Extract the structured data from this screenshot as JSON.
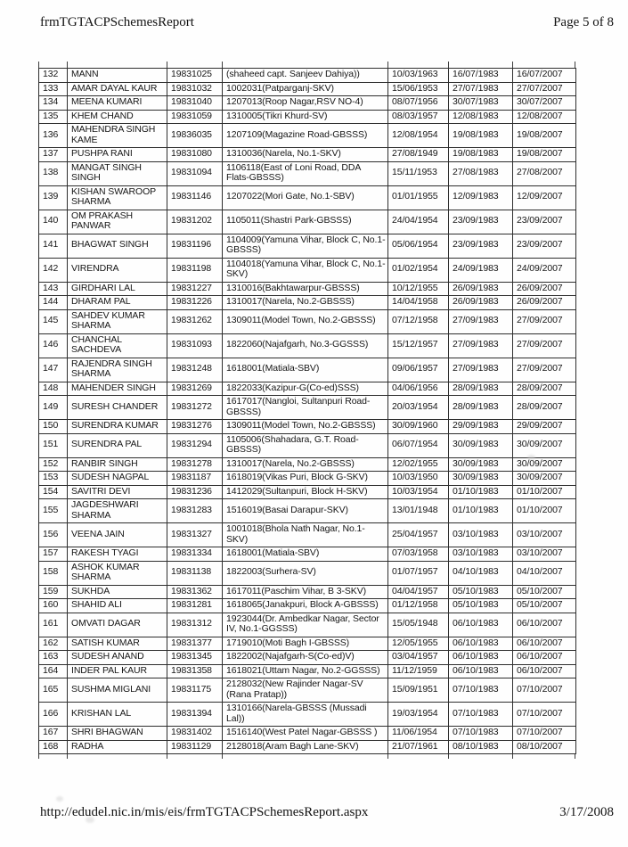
{
  "header": {
    "title": "frmTGTACPSchemesReport",
    "page_indicator": "Page 5 of 8"
  },
  "footer": {
    "url": "http://edudel.nic.in/mis/eis/frmTGTACPSchemesReport.aspx",
    "date": "3/17/2008"
  },
  "table": {
    "rows": [
      [
        "132",
        "MANN",
        "19831025",
        "(shaheed capt. Sanjeev Dahiya))",
        "10/03/1963",
        "16/07/1983",
        "16/07/2007"
      ],
      [
        "133",
        "AMAR DAYAL KAUR",
        "19831032",
        "1002031(Patparganj-SKV)",
        "15/06/1953",
        "27/07/1983",
        "27/07/2007"
      ],
      [
        "134",
        "MEENA KUMARI",
        "19831040",
        "1207013(Roop Nagar,RSV NO-4)",
        "08/07/1956",
        "30/07/1983",
        "30/07/2007"
      ],
      [
        "135",
        "KHEM CHAND",
        "19831059",
        "1310005(Tikri Khurd-SV)",
        "08/03/1957",
        "12/08/1983",
        "12/08/2007"
      ],
      [
        "136",
        "MAHENDRA SINGH KAME",
        "19836035",
        "1207109(Magazine Road-GBSSS)",
        "12/08/1954",
        "19/08/1983",
        "19/08/2007"
      ],
      [
        "137",
        "PUSHPA RANI",
        "19831080",
        "1310036(Narela, No.1-SKV)",
        "27/08/1949",
        "19/08/1983",
        "19/08/2007"
      ],
      [
        "138",
        "MANGAT SINGH SINGH",
        "19831094",
        "1106118(East of Loni Road, DDA Flats-GBSSS)",
        "15/11/1953",
        "27/08/1983",
        "27/08/2007"
      ],
      [
        "139",
        "KISHAN SWAROOP SHARMA",
        "19831146",
        "1207022(Mori Gate, No.1-SBV)",
        "01/01/1955",
        "12/09/1983",
        "12/09/2007"
      ],
      [
        "140",
        "OM PRAKASH PANWAR",
        "19831202",
        "1105011(Shastri Park-GBSSS)",
        "24/04/1954",
        "23/09/1983",
        "23/09/2007"
      ],
      [
        "141",
        "BHAGWAT SINGH",
        "19831196",
        "1104009(Yamuna Vihar, Block C, No.1-GBSSS)",
        "05/06/1954",
        "23/09/1983",
        "23/09/2007"
      ],
      [
        "142",
        "VIRENDRA",
        "19831198",
        "1104018(Yamuna Vihar, Block C, No.1-SKV)",
        "01/02/1954",
        "24/09/1983",
        "24/09/2007"
      ],
      [
        "143",
        "GIRDHARI LAL",
        "19831227",
        "1310016(Bakhtawarpur-GBSSS)",
        "10/12/1955",
        "26/09/1983",
        "26/09/2007"
      ],
      [
        "144",
        "DHARAM PAL",
        "19831226",
        "1310017(Narela, No.2-GBSSS)",
        "14/04/1958",
        "26/09/1983",
        "26/09/2007"
      ],
      [
        "145",
        "SAHDEV KUMAR SHARMA",
        "19831262",
        "1309011(Model Town, No.2-GBSSS)",
        "07/12/1958",
        "27/09/1983",
        "27/09/2007"
      ],
      [
        "146",
        "CHANCHAL SACHDEVA",
        "19831093",
        "1822060(Najafgarh, No.3-GGSSS)",
        "15/12/1957",
        "27/09/1983",
        "27/09/2007"
      ],
      [
        "147",
        "RAJENDRA SINGH SHARMA",
        "19831248",
        "1618001(Matiala-SBV)",
        "09/06/1957",
        "27/09/1983",
        "27/09/2007"
      ],
      [
        "148",
        "MAHENDER SINGH",
        "19831269",
        "1822033(Kazipur-G(Co-ed)SSS)",
        "04/06/1956",
        "28/09/1983",
        "28/09/2007"
      ],
      [
        "149",
        "SURESH CHANDER",
        "19831272",
        "1617017(Nangloi, Sultanpuri Road-GBSSS)",
        "20/03/1954",
        "28/09/1983",
        "28/09/2007"
      ],
      [
        "150",
        "SURENDRA KUMAR",
        "19831276",
        "1309011(Model Town, No.2-GBSSS)",
        "30/09/1960",
        "29/09/1983",
        "29/09/2007"
      ],
      [
        "151",
        "SURENDRA PAL",
        "19831294",
        "1105006(Shahadara, G.T. Road-GBSSS)",
        "06/07/1954",
        "30/09/1983",
        "30/09/2007"
      ],
      [
        "152",
        "RANBIR SINGH",
        "19831278",
        "1310017(Narela, No.2-GBSSS)",
        "12/02/1955",
        "30/09/1983",
        "30/09/2007"
      ],
      [
        "153",
        "SUDESH NAGPAL",
        "19831187",
        "1618019(Vikas Puri, Block G-SKV)",
        "10/03/1950",
        "30/09/1983",
        "30/09/2007"
      ],
      [
        "154",
        "SAVITRI DEVI",
        "19831236",
        "1412029(Sultanpuri, Block H-SKV)",
        "10/03/1954",
        "01/10/1983",
        "01/10/2007"
      ],
      [
        "155",
        "JAGDESHWARI SHARMA",
        "19831283",
        "1516019(Basai Darapur-SKV)",
        "13/01/1948",
        "01/10/1983",
        "01/10/2007"
      ],
      [
        "156",
        "VEENA JAIN",
        "19831327",
        "1001018(Bhola Nath Nagar, No.1-SKV)",
        "25/04/1957",
        "03/10/1983",
        "03/10/2007"
      ],
      [
        "157",
        "RAKESH TYAGI",
        "19831334",
        "1618001(Matiala-SBV)",
        "07/03/1958",
        "03/10/1983",
        "03/10/2007"
      ],
      [
        "158",
        "ASHOK KUMAR SHARMA",
        "19831138",
        "1822003(Surhera-SV)",
        "01/07/1957",
        "04/10/1983",
        "04/10/2007"
      ],
      [
        "159",
        "SUKHDA",
        "19831362",
        "1617011(Paschim Vihar, B 3-SKV)",
        "04/04/1957",
        "05/10/1983",
        "05/10/2007"
      ],
      [
        "160",
        "SHAHID ALI",
        "19831281",
        "1618065(Janakpuri, Block A-GBSSS)",
        "01/12/1958",
        "05/10/1983",
        "05/10/2007"
      ],
      [
        "161",
        "OMVATI DAGAR",
        "19831312",
        "1923044(Dr. Ambedkar Nagar, Sector IV, No.1-GGSSS)",
        "15/05/1948",
        "06/10/1983",
        "06/10/2007"
      ],
      [
        "162",
        "SATISH KUMAR",
        "19831377",
        "1719010(Moti Bagh I-GBSSS)",
        "12/05/1955",
        "06/10/1983",
        "06/10/2007"
      ],
      [
        "163",
        "SUDESH ANAND",
        "19831345",
        "1822002(Najafgarh-S(Co-ed)V)",
        "03/04/1957",
        "06/10/1983",
        "06/10/2007"
      ],
      [
        "164",
        "INDER PAL KAUR",
        "19831358",
        "1618021(Uttam Nagar, No.2-GGSSS)",
        "11/12/1959",
        "06/10/1983",
        "06/10/2007"
      ],
      [
        "165",
        "SUSHMA MIGLANI",
        "19831175",
        "2128032(New Rajinder Nagar-SV (Rana Pratap))",
        "15/09/1951",
        "07/10/1983",
        "07/10/2007"
      ],
      [
        "166",
        "KRISHAN LAL",
        "19831394",
        "1310166(Narela-GBSSS (Mussadi Lal))",
        "19/03/1954",
        "07/10/1983",
        "07/10/2007"
      ],
      [
        "167",
        "SHRI BHAGWAN",
        "19831402",
        "1516140(West Patel Nagar-GBSSS )",
        "11/06/1954",
        "07/10/1983",
        "07/10/2007"
      ],
      [
        "168",
        "RADHA",
        "19831129",
        "2128018(Aram Bagh Lane-SKV)",
        "21/07/1961",
        "08/10/1983",
        "08/10/2007"
      ]
    ]
  }
}
